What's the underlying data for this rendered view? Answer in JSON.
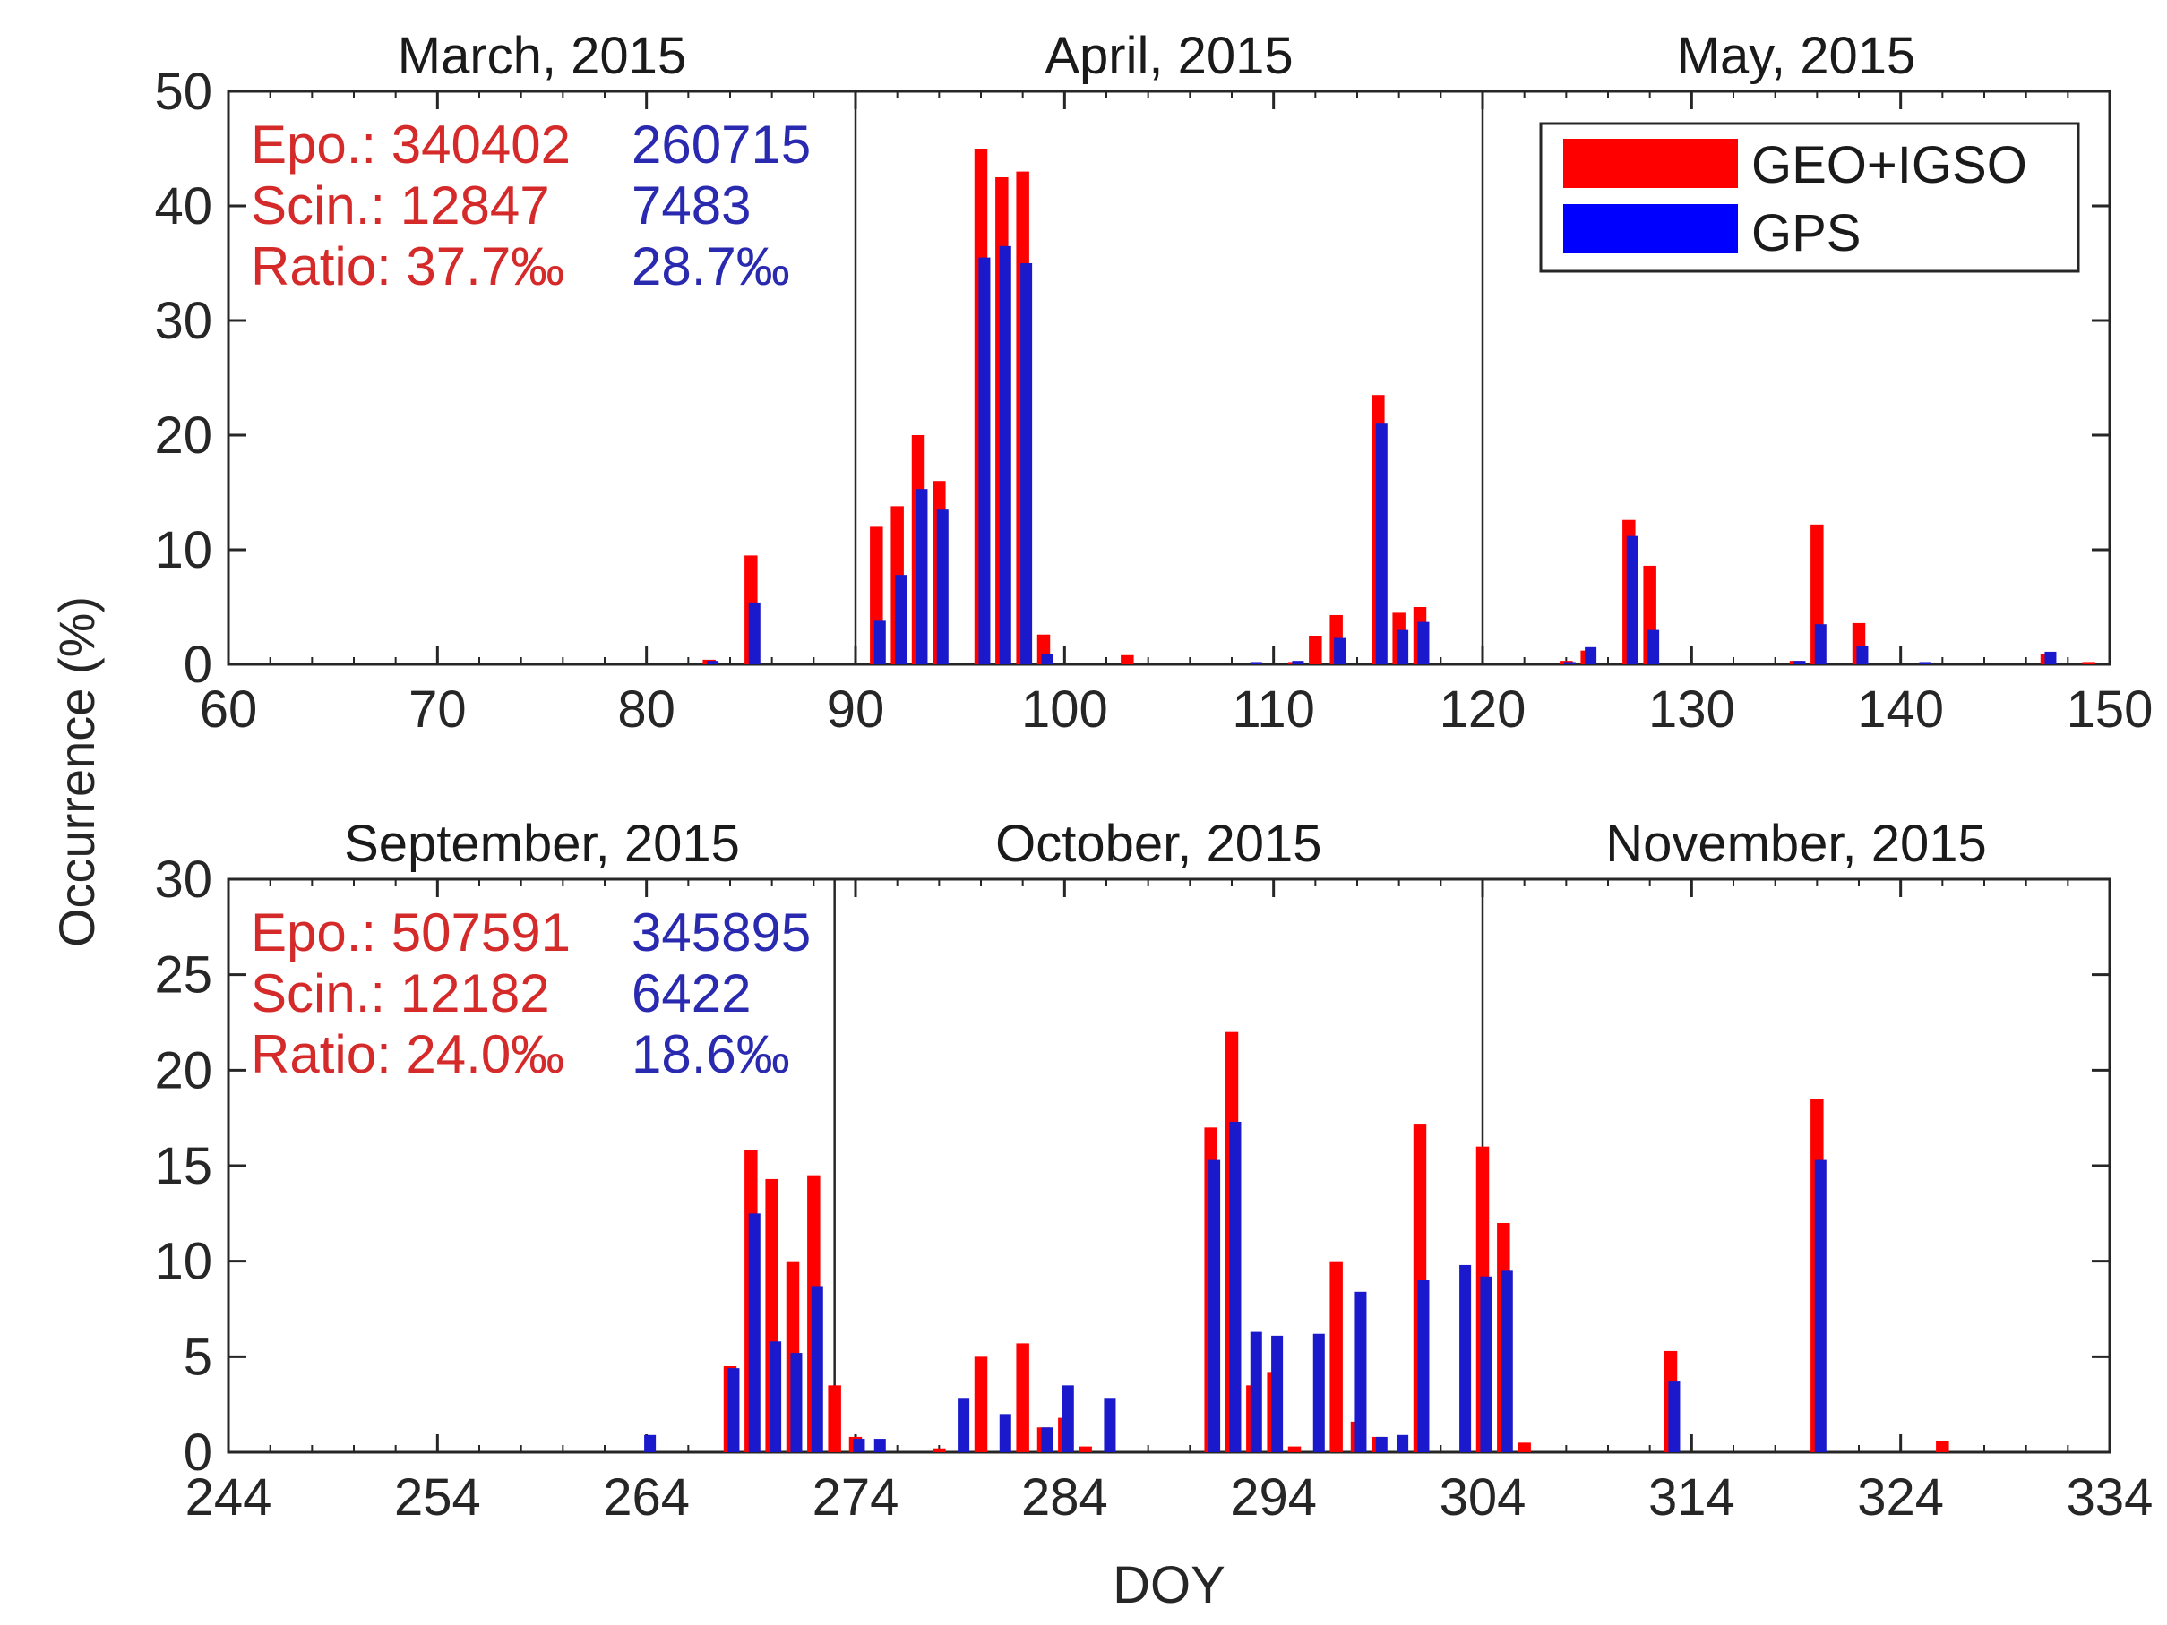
{
  "figure": {
    "ylabel": "Occurrence (%)",
    "xlabel": "DOY",
    "legend": [
      {
        "label": "GEO+IGSO",
        "color": "#ff0000"
      },
      {
        "label": "GPS",
        "color": "#0000ff"
      }
    ],
    "colors": {
      "geo": "#ff0000",
      "gps": "#1a1acc",
      "geo_text": "#d42a2a",
      "gps_text": "#2a2ab0",
      "axis": "#262626"
    }
  },
  "chart_data": [
    {
      "type": "bar",
      "xlim": [
        60,
        150
      ],
      "ylim": [
        0,
        50
      ],
      "xticks": [
        60,
        70,
        80,
        90,
        100,
        110,
        120,
        130,
        140,
        150
      ],
      "yticks": [
        0,
        10,
        20,
        30,
        40,
        50
      ],
      "month_dividers": [
        90,
        120
      ],
      "months": [
        {
          "label": "March, 2015",
          "center": 75
        },
        {
          "label": "April, 2015",
          "center": 105
        },
        {
          "label": "May, 2015",
          "center": 135
        }
      ],
      "stats": {
        "epo_label": "Epo.: 340402",
        "epo_gps": "260715",
        "scin_label": "Scin.: 12847",
        "scin_gps": "7483",
        "ratio_label": "Ratio: 37.7‰",
        "ratio_gps": "28.7‰"
      },
      "series": [
        {
          "name": "GEO+IGSO",
          "x": [
            83,
            85,
            91,
            92,
            93,
            94,
            96,
            97,
            98,
            99,
            103,
            111,
            112,
            113,
            115,
            116,
            117,
            124,
            125,
            127,
            128,
            135,
            136,
            138,
            147,
            149
          ],
          "values": [
            0.4,
            9.5,
            12,
            13.8,
            20,
            16,
            45,
            42.5,
            43,
            2.6,
            0.8,
            0.2,
            2.5,
            4.3,
            23.5,
            4.5,
            5,
            0.3,
            1.2,
            12.6,
            8.6,
            0.3,
            12.2,
            3.6,
            0.9,
            0.2
          ]
        },
        {
          "name": "GPS",
          "x": [
            83,
            85,
            91,
            92,
            93,
            94,
            96,
            97,
            98,
            99,
            109,
            111,
            113,
            115,
            116,
            117,
            124,
            125,
            127,
            128,
            135,
            136,
            138,
            141,
            147
          ],
          "values": [
            0.3,
            5.4,
            3.8,
            7.8,
            15.3,
            13.5,
            35.5,
            36.5,
            35,
            0.9,
            0.2,
            0.3,
            2.3,
            21,
            3,
            3.7,
            0.2,
            1.5,
            11.2,
            3,
            0.3,
            3.5,
            1.6,
            0.2,
            1.1
          ]
        }
      ]
    },
    {
      "type": "bar",
      "xlim": [
        244,
        334
      ],
      "ylim": [
        0,
        30
      ],
      "xticks": [
        244,
        254,
        264,
        274,
        284,
        294,
        304,
        314,
        324,
        334
      ],
      "yticks": [
        0,
        5,
        10,
        15,
        20,
        25,
        30
      ],
      "month_dividers": [
        273,
        304
      ],
      "months": [
        {
          "label": "September, 2015",
          "center": 259
        },
        {
          "label": "October, 2015",
          "center": 288.5
        },
        {
          "label": "November, 2015",
          "center": 319
        }
      ],
      "stats": {
        "epo_label": "Epo.: 507591",
        "epo_gps": "345895",
        "scin_label": "Scin.: 12182",
        "scin_gps": "6422",
        "ratio_label": "Ratio: 24.0‰",
        "ratio_gps": "18.6‰"
      },
      "series": [
        {
          "name": "GEO+IGSO",
          "x": [
            268,
            269,
            270,
            271,
            272,
            273,
            274,
            278,
            280,
            282,
            283,
            284,
            285,
            291,
            292,
            293,
            294,
            295,
            297,
            298,
            299,
            301,
            304,
            305,
            306,
            313,
            320,
            326
          ],
          "values": [
            4.5,
            15.8,
            14.3,
            10,
            14.5,
            3.5,
            0.8,
            0.2,
            5,
            5.7,
            1.3,
            1.8,
            0.3,
            17,
            22,
            3.5,
            4.2,
            0.3,
            10,
            1.6,
            0.8,
            17.2,
            16,
            12,
            0.5,
            5.3,
            18.5,
            0.6
          ]
        },
        {
          "name": "GPS",
          "x": [
            264,
            268,
            269,
            270,
            271,
            272,
            274,
            275,
            279,
            281,
            283,
            284,
            286,
            291,
            292,
            293,
            294,
            296,
            298,
            299,
            300,
            301,
            303,
            304,
            305,
            313,
            320
          ],
          "values": [
            0.9,
            4.4,
            12.5,
            5.8,
            5.2,
            8.7,
            0.7,
            0.7,
            2.8,
            2,
            1.3,
            3.5,
            2.8,
            15.3,
            17.3,
            6.3,
            6.1,
            6.2,
            8.4,
            0.8,
            0.9,
            9,
            9.8,
            9.2,
            9.5,
            3.7,
            15.3
          ]
        }
      ]
    }
  ]
}
